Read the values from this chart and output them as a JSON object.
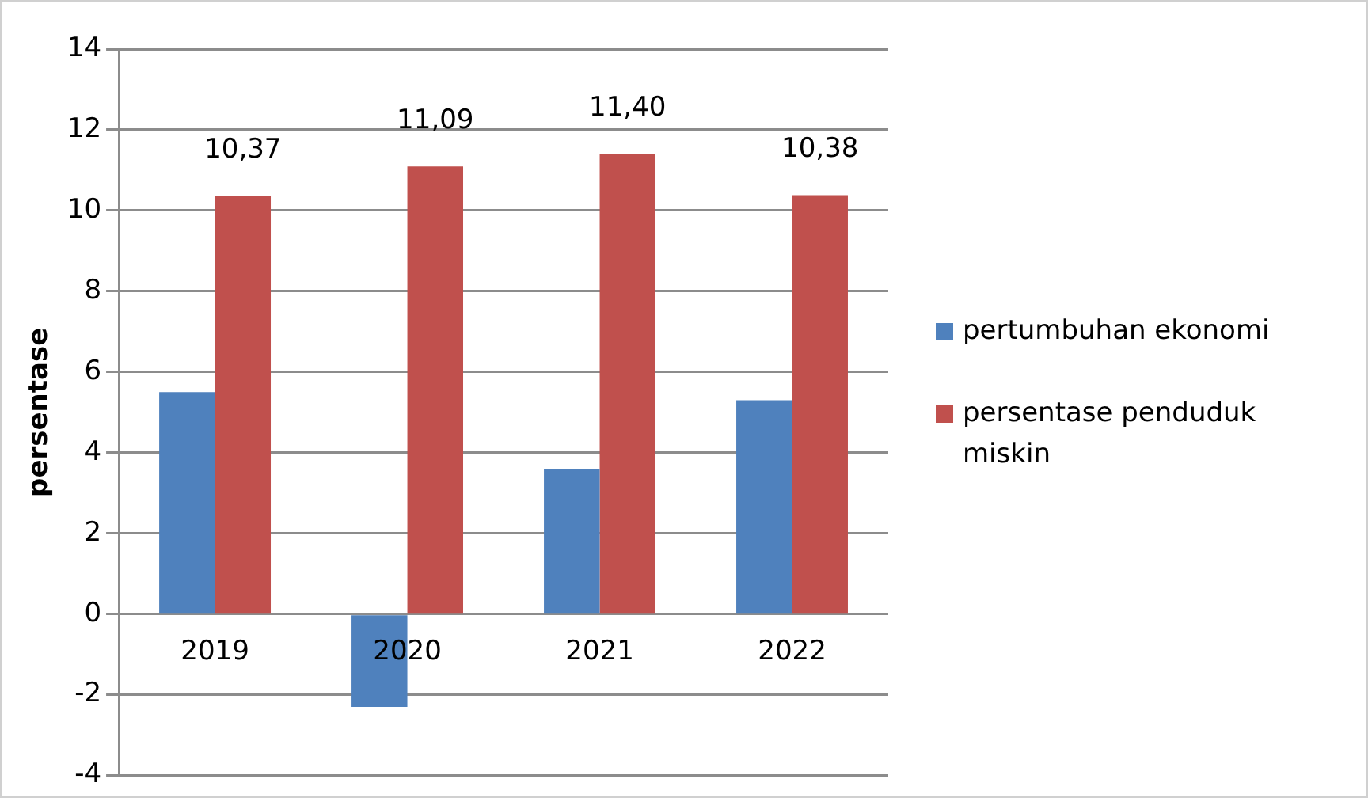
{
  "chart_data": {
    "type": "bar",
    "ylabel": "persentase",
    "categories": [
      "2019",
      "2020",
      "2021",
      "2022"
    ],
    "series": [
      {
        "name": "pertumbuhan ekonomi",
        "color": "#4f81bd",
        "values": [
          5.5,
          -2.3,
          3.6,
          5.3
        ]
      },
      {
        "name": "persentase penduduk miskin",
        "color": "#c0504d",
        "values": [
          10.37,
          11.09,
          11.4,
          10.38
        ],
        "value_labels": [
          "10,37",
          "11,09",
          "11,40",
          "10,38"
        ]
      }
    ],
    "ylim": [
      -4,
      14
    ],
    "yticks": [
      -4,
      -2,
      0,
      2,
      4,
      6,
      8,
      10,
      12,
      14
    ],
    "grid": "y",
    "legend": "right"
  }
}
